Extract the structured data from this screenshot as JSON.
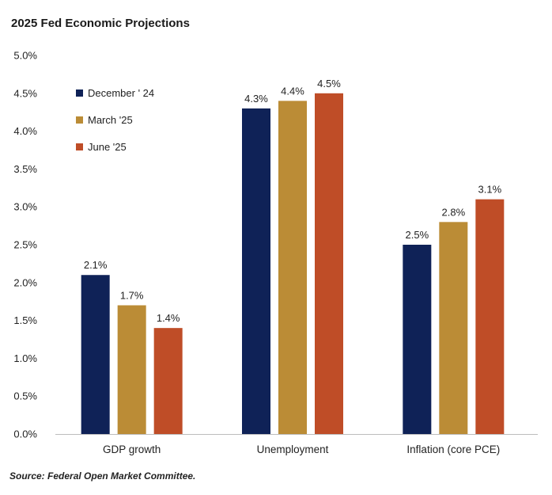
{
  "chart_data": {
    "type": "bar",
    "title": "2025 Fed Economic Projections",
    "categories": [
      "GDP growth",
      "Unemployment",
      "Inflation (core PCE)"
    ],
    "series": [
      {
        "name": "December ' 24",
        "color": "#0f2257",
        "values": [
          2.1,
          4.3,
          2.5
        ],
        "labels": [
          "2.1%",
          "4.3%",
          "2.5%"
        ]
      },
      {
        "name": "March '25",
        "color": "#bb8c36",
        "values": [
          1.7,
          4.4,
          2.8
        ],
        "labels": [
          "1.7%",
          "4.4%",
          "2.8%"
        ]
      },
      {
        "name": "June '25",
        "color": "#bf4d27",
        "values": [
          1.4,
          4.5,
          3.1
        ],
        "labels": [
          "1.4%",
          "4.5%",
          "3.1%"
        ]
      }
    ],
    "ylim": [
      0,
      5
    ],
    "yticks": [
      0,
      0.5,
      1,
      1.5,
      2,
      2.5,
      3,
      3.5,
      4,
      4.5,
      5
    ],
    "ytick_labels": [
      "0.0%",
      "0.5%",
      "1.0%",
      "1.5%",
      "2.0%",
      "2.5%",
      "3.0%",
      "3.5%",
      "4.0%",
      "4.5%",
      "5.0%"
    ],
    "xlabel": "",
    "ylabel": "",
    "legend_position": "top-left",
    "grid": false
  },
  "source": "Source: Federal Open Market Committee."
}
